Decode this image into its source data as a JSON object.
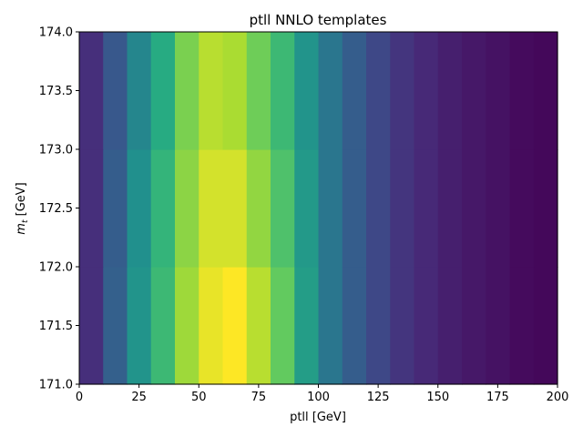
{
  "chart_data": {
    "type": "heatmap",
    "title": "ptll NNLO templates",
    "xlabel": "ptll [GeV]",
    "ylabel_var": "m",
    "ylabel_sub": "t",
    "ylabel_unit": " [GeV]",
    "xlim": [
      0,
      200
    ],
    "ylim": [
      171.0,
      174.0
    ],
    "x_ticks": [
      0,
      25,
      50,
      75,
      100,
      125,
      150,
      175,
      200
    ],
    "x_tick_labels": [
      "0",
      "25",
      "50",
      "75",
      "100",
      "125",
      "150",
      "175",
      "200"
    ],
    "y_ticks": [
      171.0,
      171.5,
      172.0,
      172.5,
      173.0,
      173.5,
      174.0
    ],
    "y_tick_labels": [
      "171.0",
      "171.5",
      "172.0",
      "172.5",
      "173.0",
      "173.5",
      "174.0"
    ],
    "x_bin_edges": [
      0,
      10,
      20,
      30,
      40,
      50,
      60,
      70,
      80,
      90,
      100,
      110,
      120,
      130,
      140,
      150,
      160,
      170,
      180,
      190,
      200
    ],
    "y_bin_edges": [
      171.0,
      172.0,
      173.0,
      174.0
    ],
    "colormap": "viridis",
    "grid": false,
    "legend": "none",
    "values": [
      [
        0.14,
        0.31,
        0.52,
        0.68,
        0.86,
        0.97,
        1.0,
        0.9,
        0.76,
        0.56,
        0.4,
        0.3,
        0.22,
        0.16,
        0.12,
        0.09,
        0.07,
        0.05,
        0.03,
        0.02
      ],
      [
        0.14,
        0.3,
        0.5,
        0.66,
        0.83,
        0.94,
        0.94,
        0.84,
        0.72,
        0.54,
        0.4,
        0.3,
        0.22,
        0.16,
        0.12,
        0.09,
        0.07,
        0.05,
        0.03,
        0.02
      ],
      [
        0.14,
        0.28,
        0.46,
        0.62,
        0.8,
        0.9,
        0.88,
        0.78,
        0.68,
        0.52,
        0.4,
        0.3,
        0.22,
        0.16,
        0.12,
        0.09,
        0.07,
        0.05,
        0.03,
        0.02
      ]
    ]
  }
}
